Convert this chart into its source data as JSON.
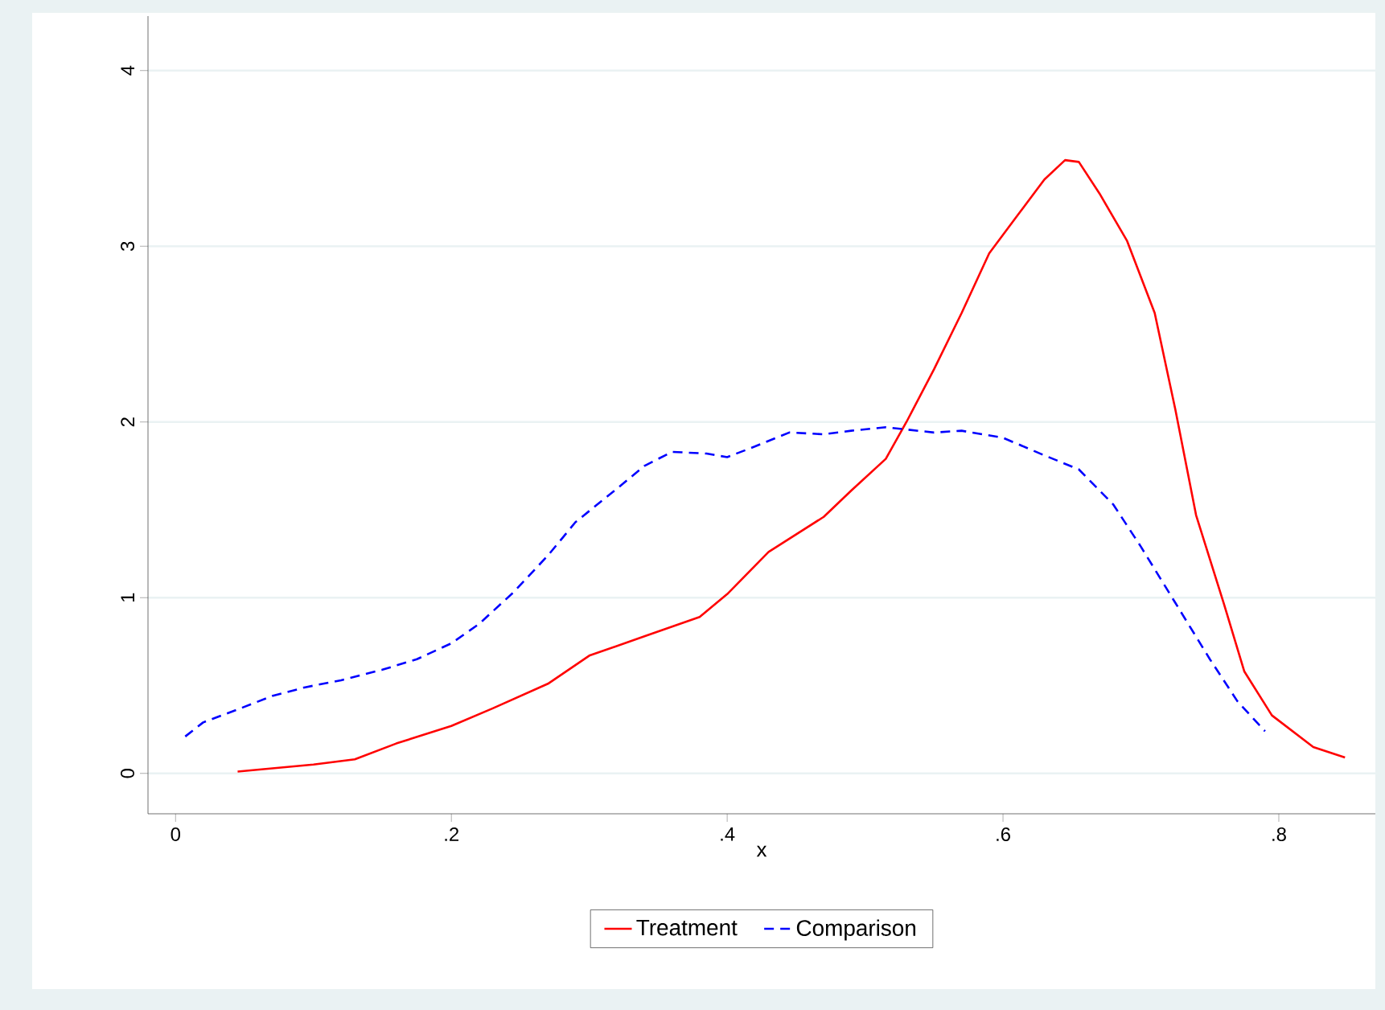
{
  "chart_data": {
    "type": "line",
    "xlabel": "x",
    "xlim": [
      -0.02,
      0.87
    ],
    "ylim": [
      -0.23,
      4.31
    ],
    "xticks": [
      0,
      {
        "value": 0.2,
        "label": ".2"
      },
      {
        "value": 0.4,
        "label": ".4"
      },
      {
        "value": 0.6,
        "label": ".6"
      },
      {
        "value": 0.8,
        "label": ".8"
      }
    ],
    "yticks": [
      0,
      1,
      2,
      3,
      4
    ],
    "grid": "y",
    "legend": "bottom",
    "marker": "none",
    "series": [
      {
        "name": "Treatment",
        "color": "#ff0000",
        "line_style": "solid",
        "x": [
          0.045,
          0.1,
          0.13,
          0.16,
          0.2,
          0.23,
          0.27,
          0.3,
          0.34,
          0.38,
          0.4,
          0.43,
          0.47,
          0.49,
          0.515,
          0.53,
          0.55,
          0.57,
          0.59,
          0.61,
          0.63,
          0.645,
          0.655,
          0.67,
          0.69,
          0.71,
          0.725,
          0.74,
          0.76,
          0.775,
          0.795,
          0.825,
          0.848
        ],
        "values": [
          0.01,
          0.05,
          0.08,
          0.17,
          0.27,
          0.37,
          0.51,
          0.67,
          0.78,
          0.89,
          1.02,
          1.26,
          1.46,
          1.61,
          1.79,
          2.0,
          2.3,
          2.62,
          2.96,
          3.17,
          3.38,
          3.49,
          3.48,
          3.3,
          3.03,
          2.62,
          2.07,
          1.47,
          0.97,
          0.58,
          0.33,
          0.15,
          0.09
        ]
      },
      {
        "name": "Comparison",
        "color": "#0000ff",
        "line_style": "dashed",
        "x": [
          0.007,
          0.02,
          0.047,
          0.07,
          0.094,
          0.12,
          0.15,
          0.175,
          0.2,
          0.22,
          0.245,
          0.27,
          0.29,
          0.32,
          0.34,
          0.36,
          0.385,
          0.4,
          0.42,
          0.445,
          0.47,
          0.49,
          0.515,
          0.55,
          0.57,
          0.6,
          0.63,
          0.655,
          0.68,
          0.7,
          0.725,
          0.75,
          0.77,
          0.79
        ],
        "values": [
          0.21,
          0.29,
          0.37,
          0.44,
          0.49,
          0.53,
          0.59,
          0.65,
          0.74,
          0.85,
          1.03,
          1.24,
          1.43,
          1.62,
          1.75,
          1.83,
          1.82,
          1.8,
          1.86,
          1.94,
          1.93,
          1.95,
          1.97,
          1.94,
          1.95,
          1.91,
          1.81,
          1.73,
          1.53,
          1.29,
          0.97,
          0.65,
          0.41,
          0.24
        ]
      }
    ]
  }
}
